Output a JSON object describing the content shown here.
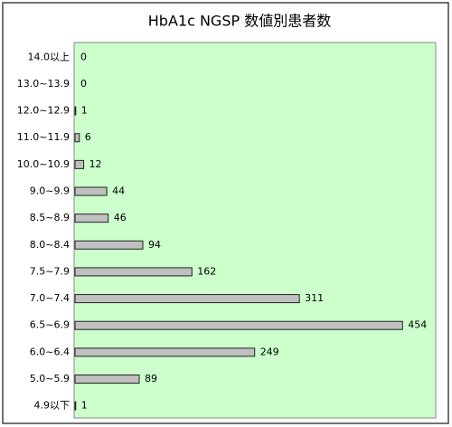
{
  "chart_data": {
    "type": "bar",
    "orientation": "horizontal",
    "title": "HbA1c NGSP 数値別患者数",
    "categories": [
      "14.0以上",
      "13.0~13.9",
      "12.0~12.9",
      "11.0~11.9",
      "10.0~10.9",
      "9.0~9.9",
      "8.5~8.9",
      "8.0~8.4",
      "7.5~7.9",
      "7.0~7.4",
      "6.5~6.9",
      "6.0~6.4",
      "5.0~5.9",
      "4.9以下"
    ],
    "values": [
      0,
      0,
      1,
      6,
      12,
      44,
      46,
      94,
      162,
      311,
      454,
      249,
      89,
      1
    ],
    "color": "#c0c0c0",
    "background": "#ccffcc",
    "xlim": [
      0,
      500
    ]
  }
}
